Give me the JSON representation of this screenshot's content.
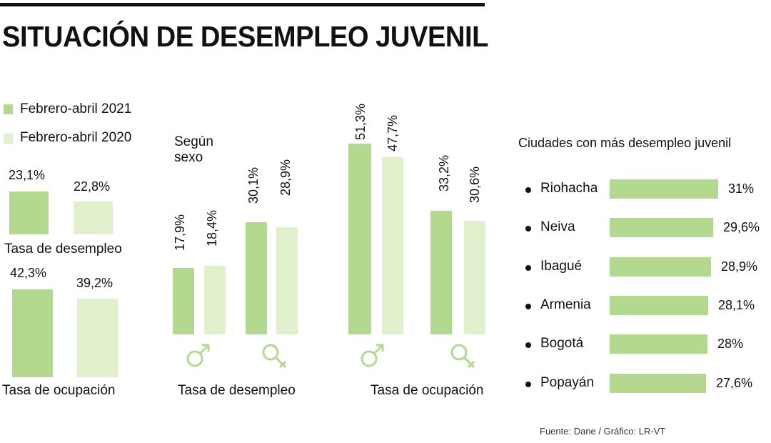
{
  "title": "SITUACIÓN DE DESEMPLEO JUVENIL",
  "colors": {
    "dark": "#b3d98e",
    "light": "#e2f1cd",
    "symbol": "#b3d98e",
    "text": "#111111"
  },
  "legend": [
    {
      "label": "Febrero-abril 2021",
      "color": "#b3d98e"
    },
    {
      "label": "Febrero-abril 2020",
      "color": "#e2f1cd"
    }
  ],
  "chart_data": [
    {
      "type": "bar",
      "title": "",
      "categories": [
        "Tasa de desempleo"
      ],
      "series": [
        {
          "name": "Febrero-abril 2021",
          "values": [
            23.1
          ],
          "labels": [
            "23,1%"
          ]
        },
        {
          "name": "Febrero-abril 2020",
          "values": [
            22.8
          ],
          "labels": [
            "22,8%"
          ]
        }
      ]
    },
    {
      "type": "bar",
      "title": "",
      "categories": [
        "Tasa de ocupación"
      ],
      "series": [
        {
          "name": "Febrero-abril 2021",
          "values": [
            42.3
          ],
          "labels": [
            "42,3%"
          ]
        },
        {
          "name": "Febrero-abril 2020",
          "values": [
            39.2
          ],
          "labels": [
            "39,2%"
          ]
        }
      ]
    },
    {
      "type": "bar",
      "title": "Según sexo",
      "xlabel": "Tasa de desempleo",
      "categories": [
        "♂",
        "♀"
      ],
      "series": [
        {
          "name": "Febrero-abril 2021",
          "values": [
            17.9,
            30.1
          ],
          "labels": [
            "17,9%",
            "30,1%"
          ]
        },
        {
          "name": "Febrero-abril 2020",
          "values": [
            18.4,
            28.9
          ],
          "labels": [
            "18,4%",
            "28,9%"
          ]
        }
      ]
    },
    {
      "type": "bar",
      "xlabel": "Tasa de ocupación",
      "categories": [
        "♂",
        "♀"
      ],
      "series": [
        {
          "name": "Febrero-abril 2021",
          "values": [
            51.3,
            33.2
          ],
          "labels": [
            "51,3%",
            "33,2%"
          ]
        },
        {
          "name": "Febrero-abril 2020",
          "values": [
            47.7,
            30.6
          ],
          "labels": [
            "47,7%",
            "30,6%"
          ]
        }
      ]
    },
    {
      "type": "bar",
      "orientation": "horizontal",
      "title": "Ciudades con más desempleo juvenil",
      "categories": [
        "Riohacha",
        "Neiva",
        "Ibagué",
        "Armenia",
        "Bogotá",
        "Popayán"
      ],
      "values": [
        31,
        29.6,
        28.9,
        28.1,
        28,
        27.6
      ],
      "labels": [
        "31%",
        "29,6%",
        "28,9%",
        "28,1%",
        "28%",
        "27,6%"
      ]
    }
  ],
  "source": "Fuente: Dane / Gráfico: LR-VT"
}
